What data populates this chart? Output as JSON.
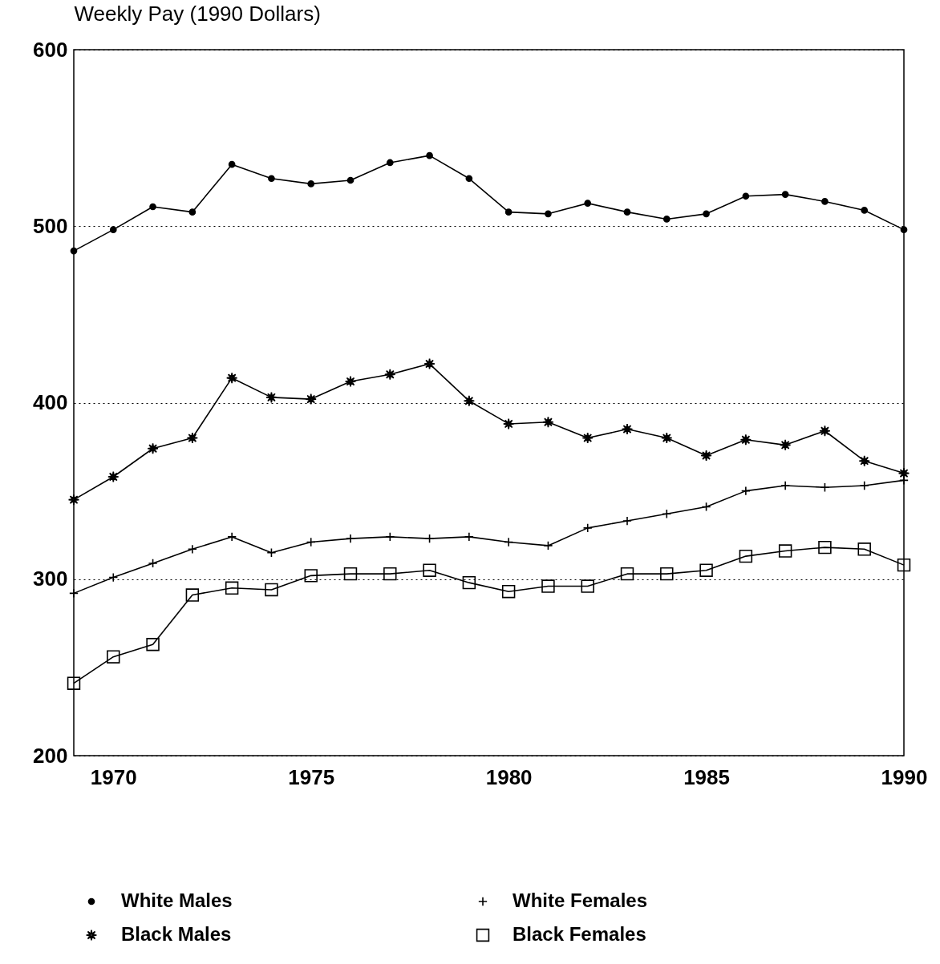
{
  "chart_data": {
    "type": "line",
    "ylabel": "Weekly Pay (1990 Dollars)",
    "x": [
      1969,
      1970,
      1971,
      1972,
      1973,
      1974,
      1975,
      1976,
      1977,
      1978,
      1979,
      1980,
      1981,
      1982,
      1983,
      1984,
      1985,
      1986,
      1987,
      1988,
      1989,
      1990
    ],
    "series": [
      {
        "name": "White Males",
        "color": "#000000",
        "marker": "circle",
        "values": [
          486,
          498,
          511,
          508,
          535,
          527,
          524,
          526,
          536,
          540,
          527,
          508,
          507,
          513,
          508,
          504,
          507,
          517,
          518,
          514,
          509,
          498
        ]
      },
      {
        "name": "White Females",
        "color": "#000000",
        "marker": "cross",
        "values": [
          292,
          301,
          309,
          317,
          324,
          315,
          321,
          323,
          324,
          323,
          324,
          321,
          319,
          329,
          333,
          337,
          341,
          350,
          353,
          352,
          353,
          356
        ]
      },
      {
        "name": "Black Males",
        "color": "#000000",
        "marker": "star",
        "values": [
          345,
          358,
          374,
          380,
          414,
          403,
          402,
          412,
          416,
          422,
          401,
          388,
          389,
          380,
          385,
          380,
          370,
          379,
          376,
          384,
          367,
          360
        ]
      },
      {
        "name": "Black Females",
        "color": "#000000",
        "marker": "square",
        "values": [
          241,
          256,
          263,
          291,
          295,
          294,
          302,
          303,
          303,
          305,
          298,
          293,
          296,
          296,
          303,
          303,
          305,
          313,
          316,
          318,
          317,
          308
        ]
      }
    ],
    "xlim": [
      1969,
      1990
    ],
    "xticks": [
      1970,
      1975,
      1980,
      1985,
      1990
    ],
    "ylim": [
      200,
      600
    ],
    "yticks": [
      200,
      300,
      400,
      500,
      600
    ],
    "grid": "y",
    "legend": "bottom"
  }
}
